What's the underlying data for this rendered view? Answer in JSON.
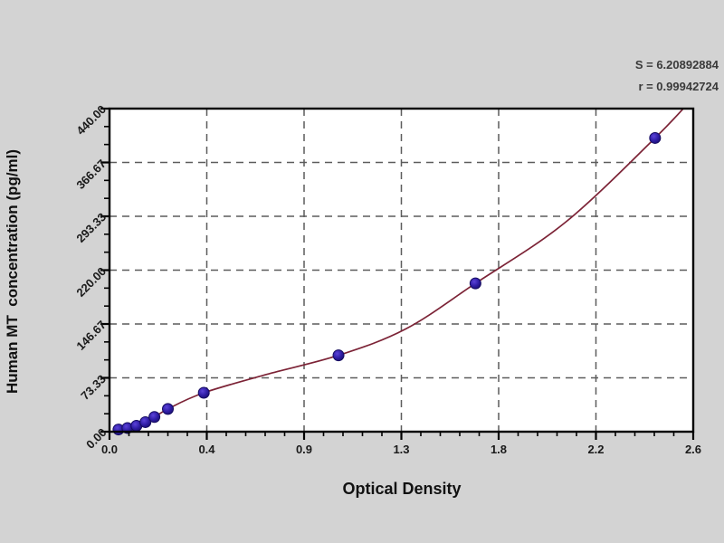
{
  "chart_data": {
    "type": "scatter",
    "title": "",
    "xlabel": "Optical Density",
    "ylabel": "Human MT  concentration (pg/ml)",
    "xlim": [
      0,
      2.6
    ],
    "ylim": [
      0,
      440
    ],
    "x_tick_labels": [
      "0.0",
      "0.4",
      "0.9",
      "1.3",
      "1.8",
      "2.2",
      "2.6"
    ],
    "y_tick_labels": [
      "0.00",
      "73.33",
      "146.67",
      "220.00",
      "293.33",
      "366.67",
      "440.00"
    ],
    "grid": {
      "style": "dashed",
      "color": "#5c5c5c",
      "on_major_ticks": true
    },
    "legend": "none",
    "series": [
      {
        "name": "standards",
        "type": "scatter",
        "marker": "circle",
        "color": "#2f1da5",
        "points": [
          [
            0.04,
            3
          ],
          [
            0.08,
            5
          ],
          [
            0.12,
            8
          ],
          [
            0.16,
            13
          ],
          [
            0.2,
            20
          ],
          [
            0.26,
            31
          ],
          [
            0.42,
            53
          ],
          [
            1.02,
            104
          ],
          [
            1.63,
            202
          ],
          [
            2.43,
            400
          ]
        ]
      },
      {
        "name": "fitted-curve",
        "type": "line",
        "color": "#7c2336",
        "samples": [
          [
            0.02,
            0
          ],
          [
            0.06,
            4
          ],
          [
            0.12,
            8
          ],
          [
            0.18,
            16
          ],
          [
            0.26,
            31
          ],
          [
            0.42,
            53
          ],
          [
            0.7,
            78
          ],
          [
            1.02,
            104
          ],
          [
            1.32,
            140
          ],
          [
            1.63,
            202
          ],
          [
            2.03,
            285
          ],
          [
            2.43,
            400
          ],
          [
            2.6,
            455
          ]
        ]
      }
    ],
    "annotations": [
      {
        "id": "s-value",
        "text": "S = 6.20892884"
      },
      {
        "id": "r-value",
        "text": "r = 0.99942724"
      }
    ]
  },
  "colors": {
    "background": "#d3d3d3",
    "plot_background": "#ffffff",
    "frame": "#000000",
    "curve": "#7c2336",
    "point": "#2f1da5",
    "grid": "#5c5c5c",
    "text": "#1a1a1a"
  }
}
